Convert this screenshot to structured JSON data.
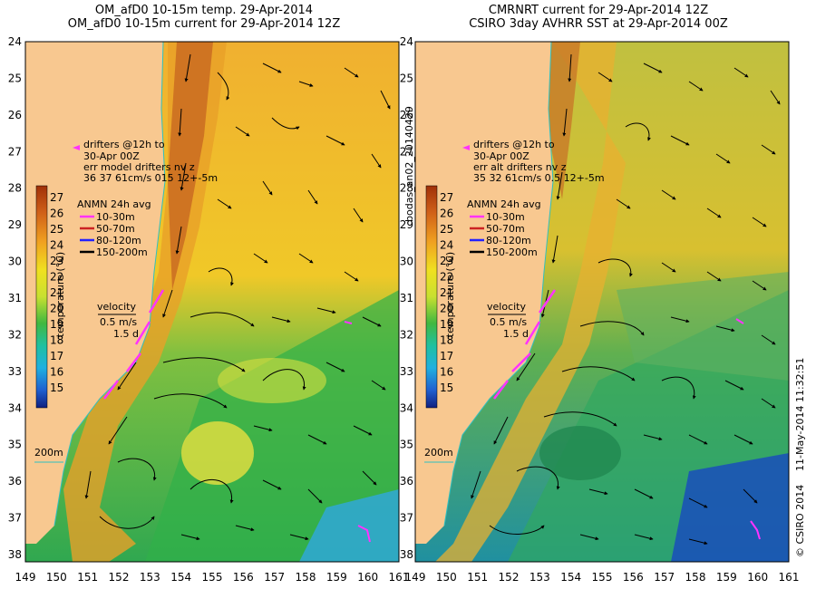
{
  "left_panel": {
    "title_line1": "OM_afD0 10-15m temp. 29-Apr-2014",
    "title_line2": "OM_afD0 10-15m current for 29-Apr-2014 12Z",
    "drifters_title": "drifters @12h to",
    "drifters_date": "30-Apr 00Z",
    "err_header": "err model drifters nv z",
    "err_values": "36   37    61cm/s 015 12+-5m"
  },
  "right_panel": {
    "title_line1": "CMRNRT current for 29-Apr-2014 12Z",
    "title_line2": "CSIRO 3day AVHRR SST at 29-Apr-2014 00Z",
    "drifters_title": "drifters @12h to",
    "drifters_date": "30-Apr 00Z",
    "err_header": "err alt drifters nv z",
    "err_values": "35 32 61cm/s 0.5 12+-5m"
  },
  "legend": {
    "anmn_title": "ANMN 24h avg",
    "depths": [
      {
        "label": "10-30m",
        "color": "#ff33ff"
      },
      {
        "label": "50-70m",
        "color": "#cc2222"
      },
      {
        "label": "80-120m",
        "color": "#2222ff"
      },
      {
        "label": "150-200m",
        "color": "#000000"
      }
    ],
    "velocity_label": "velocity",
    "velocity_speed": "0.5 m/s",
    "velocity_time": "1.5 d",
    "isobath_label": "200m",
    "temperature_axis_label": "temperature (°C)",
    "colorbar_ticks": [
      "27",
      "26",
      "25",
      "24",
      "23",
      "22",
      "21",
      "20",
      "19",
      "18",
      "17",
      "16",
      "15"
    ]
  },
  "axes": {
    "lat_ticks": [
      "24",
      "25",
      "26",
      "27",
      "28",
      "29",
      "30",
      "31",
      "32",
      "33",
      "34",
      "35",
      "36",
      "37",
      "38"
    ],
    "lon_ticks": [
      "149",
      "150",
      "151",
      "152",
      "153",
      "154",
      "155",
      "156",
      "157",
      "158",
      "159",
      "160",
      "161"
    ]
  },
  "side_labels": {
    "source_id": "bodas_an02_20140429",
    "timestamp": "11-May-2014 11:32:51",
    "copyright": "© CSIRO 2014"
  },
  "colors": {
    "land": "#f8c890",
    "warm": "#c06010",
    "mid": "#f0d020",
    "cool": "#30b040",
    "cold": "#1060d0"
  }
}
